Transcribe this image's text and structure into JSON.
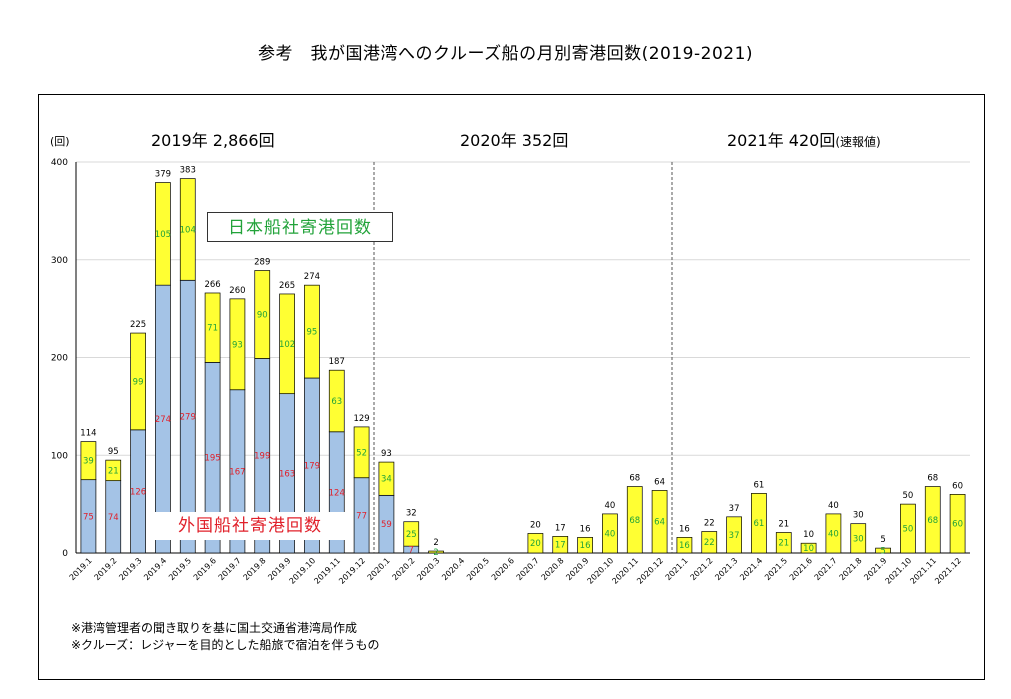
{
  "title": "参考　我が国港湾へのクルーズ船の月別寄港回数(2019-2021)",
  "y_unit": "(回)",
  "year_labels": [
    {
      "text": "2019年 2,866回",
      "note": ""
    },
    {
      "text": "2020年 352回",
      "note": ""
    },
    {
      "text": "2021年 420回",
      "note": "(速報値)"
    }
  ],
  "legend": {
    "japanese": "日本船社寄港回数",
    "foreign": "外国船社寄港回数"
  },
  "notes": [
    "※港湾管理者の聞き取りを基に国土交通省港湾局作成",
    "※クルーズ：レジャーを目的とした船旅で宿泊を伴うもの"
  ],
  "colors": {
    "foreign": "#a4c3e6",
    "japanese": "#ffff33",
    "foreign_label": "#e0202a",
    "japanese_label": "#22a33a",
    "grid": "#d9d9d9"
  },
  "chart_data": {
    "type": "bar",
    "stacked": true,
    "categories": [
      "2019.1",
      "2019.2",
      "2019.3",
      "2019.4",
      "2019.5",
      "2019.6",
      "2019.7",
      "2019.8",
      "2019.9",
      "2019.10",
      "2019.11",
      "2019.12",
      "2020.1",
      "2020.2",
      "2020.3",
      "2020.4",
      "2020.5",
      "2020.6",
      "2020.7",
      "2020.8",
      "2020.9",
      "2020.10",
      "2020.11",
      "2020.12",
      "2021.1",
      "2021.2",
      "2021.3",
      "2021.4",
      "2021.5",
      "2021.6",
      "2021.7",
      "2021.8",
      "2021.9",
      "2021.10",
      "2021.11",
      "2021.12"
    ],
    "series": [
      {
        "name": "外国船社寄港回数",
        "values": [
          75,
          74,
          126,
          274,
          279,
          195,
          167,
          199,
          163,
          179,
          124,
          77,
          59,
          7,
          0,
          0,
          0,
          0,
          0,
          0,
          0,
          0,
          0,
          0,
          0,
          0,
          0,
          0,
          0,
          0,
          0,
          0,
          0,
          0,
          0,
          0
        ],
        "labels": [
          "75",
          "74",
          "126",
          "274",
          "279",
          "195",
          "167",
          "199",
          "163",
          "179",
          "124",
          "77",
          "59",
          "7",
          "",
          "",
          "",
          "",
          "",
          "",
          "",
          "",
          "",
          "",
          "",
          "",
          "",
          "",
          "",
          "",
          "",
          "",
          "",
          "",
          "",
          ""
        ]
      },
      {
        "name": "日本船社寄港回数",
        "values": [
          39,
          21,
          99,
          105,
          104,
          71,
          93,
          90,
          102,
          95,
          63,
          52,
          34,
          25,
          2,
          0,
          0,
          0,
          20,
          17,
          16,
          40,
          68,
          64,
          16,
          22,
          37,
          61,
          21,
          10,
          40,
          30,
          5,
          50,
          68,
          60
        ],
        "labels": [
          "39",
          "21",
          "99",
          "105",
          "104",
          "71",
          "93",
          "90",
          "102",
          "95",
          "63",
          "52",
          "34",
          "25",
          "2",
          "",
          "",
          "",
          "20",
          "17",
          "16",
          "40",
          "68",
          "64",
          "16",
          "22",
          "37",
          "61",
          "21",
          "10",
          "40",
          "30",
          "5",
          "50",
          "68",
          "60"
        ]
      }
    ],
    "totals": [
      "114",
      "95",
      "225",
      "379",
      "383",
      "266",
      "260",
      "289",
      "265",
      "274",
      "187",
      "129",
      "93",
      "32",
      "2",
      "",
      "",
      "",
      "20",
      "17",
      "16",
      "40",
      "68",
      "64",
      "16",
      "22",
      "37",
      "61",
      "21",
      "10",
      "40",
      "30",
      "5",
      "50",
      "68",
      "60"
    ],
    "ylim": [
      0,
      400
    ],
    "yticks": [
      "0",
      "100",
      "200",
      "300",
      "400"
    ],
    "grid": true
  }
}
